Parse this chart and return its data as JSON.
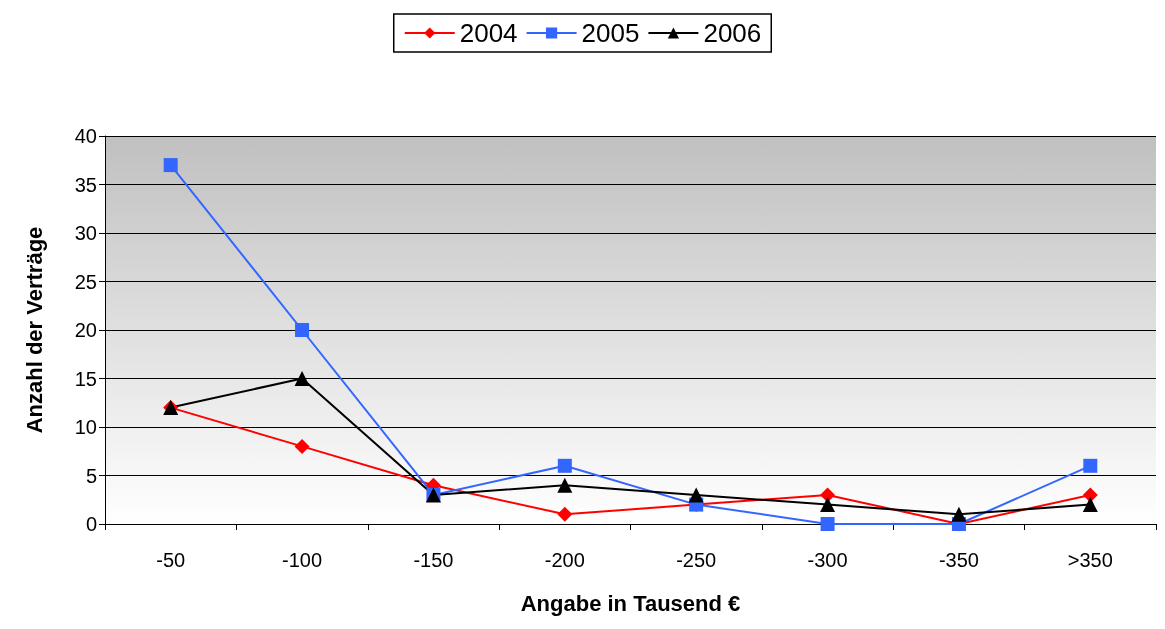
{
  "chart_data": {
    "type": "line",
    "xlabel": "Angabe in Tausend €",
    "ylabel": "Anzahl der Verträge",
    "categories": [
      "-50",
      "-100",
      "-150",
      "-200",
      "-250",
      "-300",
      "-350",
      ">350"
    ],
    "series": [
      {
        "name": "2004",
        "color": "#ff0000",
        "marker": "diamond",
        "values": [
          12,
          8,
          4,
          1,
          2,
          3,
          0,
          3
        ]
      },
      {
        "name": "2005",
        "color": "#3366ff",
        "marker": "square",
        "values": [
          37,
          20,
          3,
          6,
          2,
          0,
          0,
          6
        ]
      },
      {
        "name": "2006",
        "color": "#000000",
        "marker": "triangle",
        "values": [
          12,
          15,
          3,
          4,
          3,
          2,
          1,
          2
        ]
      }
    ],
    "ylim": [
      0,
      40
    ],
    "yticks": [
      0,
      5,
      10,
      15,
      20,
      25,
      30,
      35,
      40
    ],
    "grid": "y",
    "legend": "top"
  }
}
